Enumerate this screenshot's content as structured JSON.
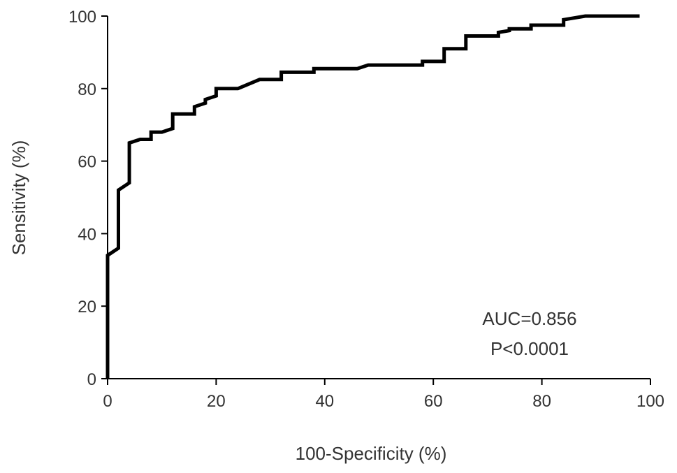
{
  "chart_data": {
    "type": "line",
    "title": "",
    "xlabel": "100-Specificity (%)",
    "ylabel": "Sensitivity (%)",
    "xlim": [
      0,
      100
    ],
    "ylim": [
      0,
      100
    ],
    "x_ticks": [
      0,
      20,
      40,
      60,
      80,
      100
    ],
    "y_ticks": [
      0,
      20,
      40,
      60,
      80,
      100
    ],
    "grid": false,
    "annotations": [
      "AUC=0.856",
      "P<0.0001"
    ],
    "series": [
      {
        "line_color": "#000000",
        "x": [
          0,
          0,
          2,
          2,
          4,
          4,
          6,
          8,
          8,
          10,
          12,
          12,
          16,
          16,
          18,
          18,
          20,
          20,
          24,
          28,
          32,
          32,
          38,
          38,
          46,
          48,
          58,
          58,
          62,
          62,
          66,
          66,
          72,
          72,
          74,
          74,
          78,
          78,
          84,
          84,
          88,
          98
        ],
        "y": [
          0,
          34,
          36,
          52,
          54,
          65,
          66,
          66,
          68,
          68,
          69,
          73,
          73,
          75,
          76,
          77,
          78,
          80,
          80,
          82.5,
          82.5,
          84.5,
          84.5,
          85.5,
          85.5,
          86.5,
          86.5,
          87.5,
          87.5,
          91,
          91,
          94.5,
          94.5,
          95.5,
          96,
          96.5,
          96.5,
          97.5,
          97.5,
          99,
          100,
          100
        ]
      }
    ]
  }
}
